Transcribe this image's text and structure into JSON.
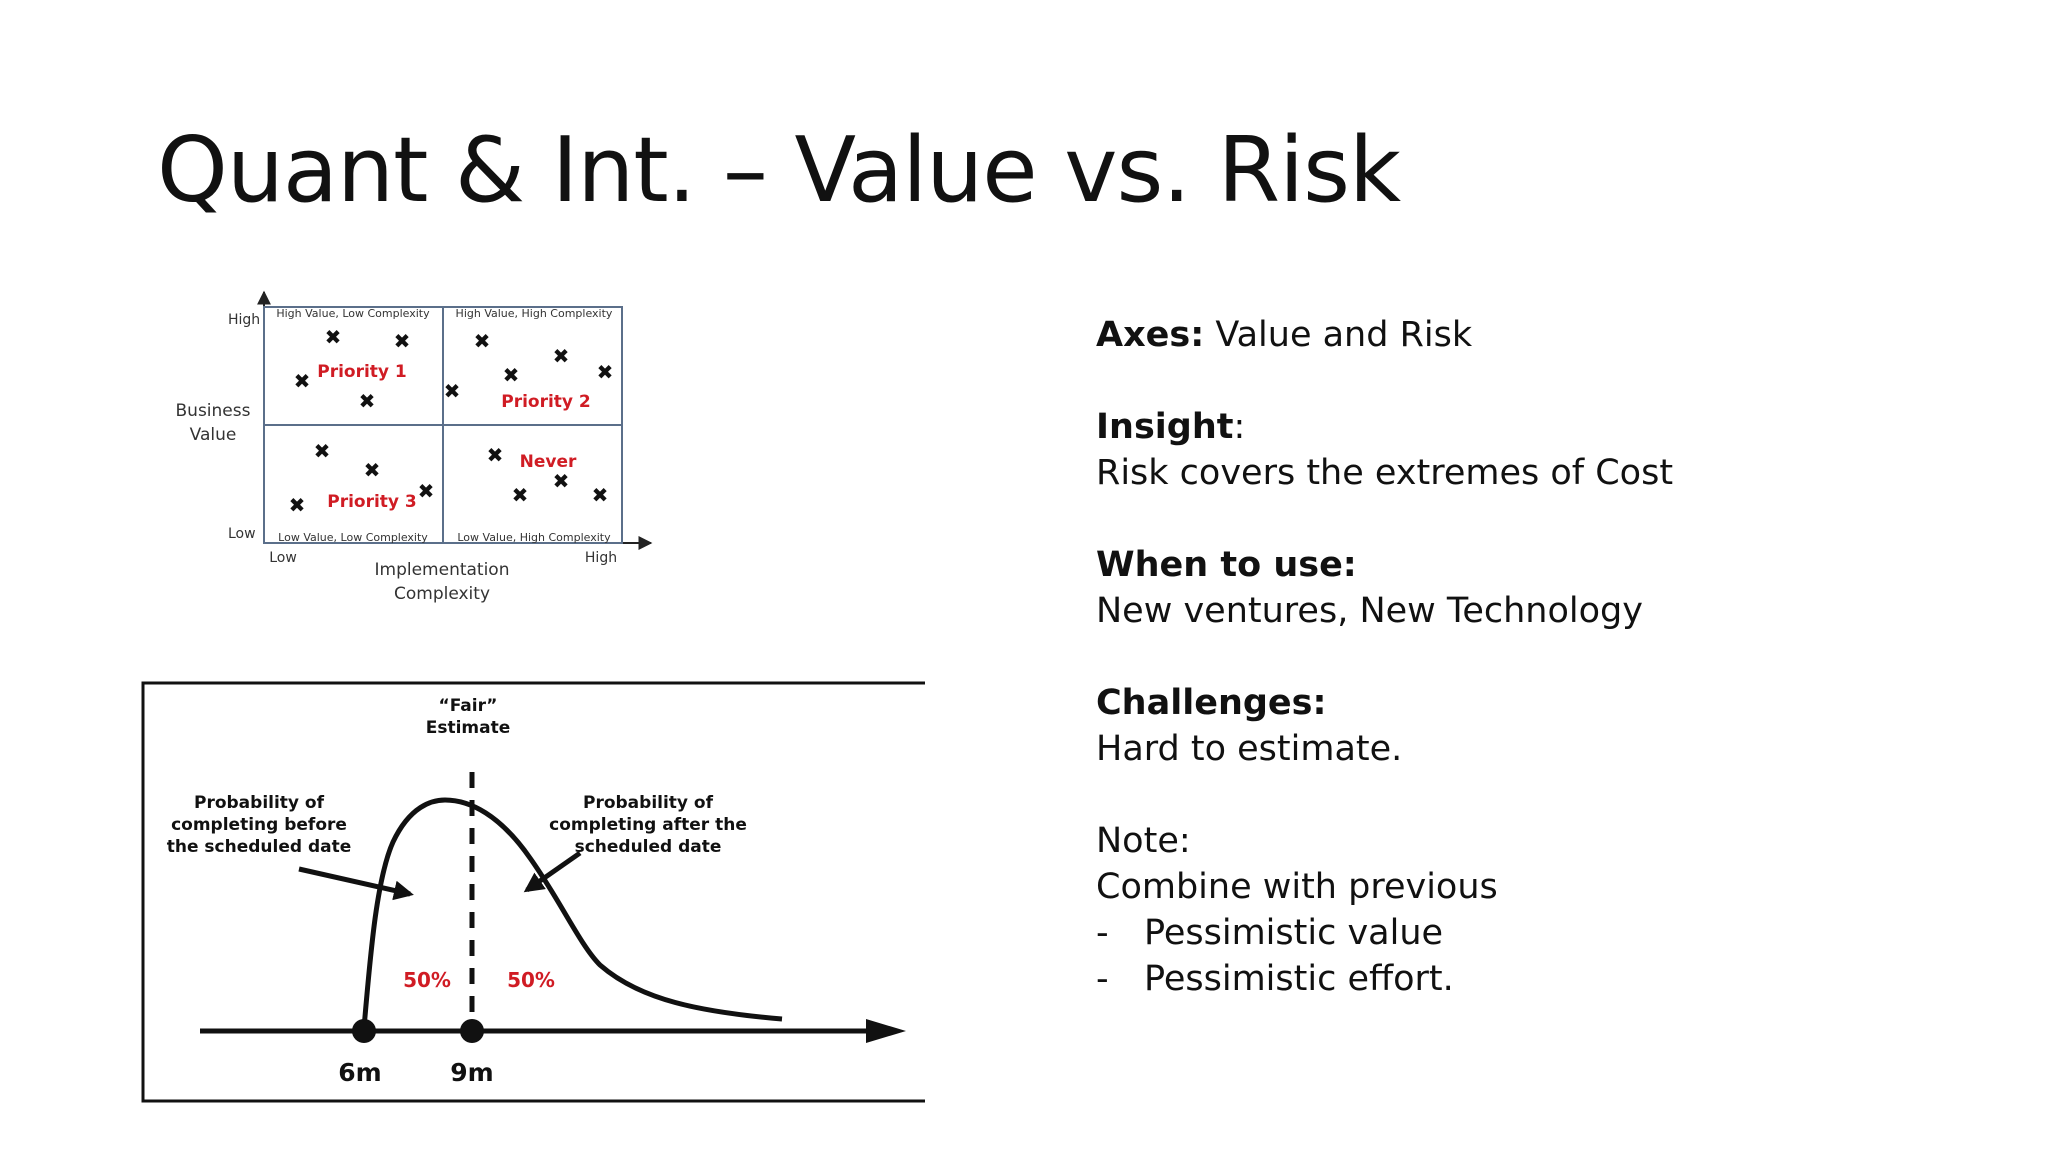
{
  "slide": {
    "title": "Quant & Int. – Value vs. Risk"
  },
  "matrix": {
    "y_axis_label_line1": "Business",
    "y_axis_label_line2": "Value",
    "y_high": "High",
    "y_low": "Low",
    "x_axis_label_line1": "Implementation",
    "x_axis_label_line2": "Complexity",
    "x_low": "Low",
    "x_high": "High",
    "quadrants": {
      "top_left": {
        "caption": "High Value, Low Complexity",
        "label": "Priority 1"
      },
      "top_right": {
        "caption": "High Value, High Complexity",
        "label": "Priority 2"
      },
      "bottom_left": {
        "caption": "Low Value, Low Complexity",
        "label": "Priority 3"
      },
      "bottom_right": {
        "caption": "Low Value, High Complexity",
        "label": "Never"
      }
    },
    "label_color": "#d01c24"
  },
  "estimate_diagram": {
    "fair_line1": "“Fair”",
    "fair_line2": "Estimate",
    "left_note_line1": "Probability of",
    "left_note_line2": "completing before",
    "left_note_line3": "the scheduled date",
    "right_note_line1": "Probability of",
    "right_note_line2": "completing after the",
    "right_note_line3": "scheduled date",
    "left_pct": "50%",
    "right_pct": "50%",
    "tick_1": "6m",
    "tick_2": "9m",
    "pct_color": "#d01c24"
  },
  "notes": {
    "axes_label": "Axes:",
    "axes_value": " Value and Risk",
    "insight_label": "Insight",
    "insight_colon": ":",
    "insight_text": "Risk covers the extremes of Cost",
    "when_label": "When to use:",
    "when_text": "New ventures, New Technology",
    "challenges_label": "Challenges:",
    "challenges_text": "Hard to estimate.",
    "note_label": "Note:",
    "note_text": "Combine with previous",
    "bullets": [
      {
        "dash": "-",
        "text": "Pessimistic value"
      },
      {
        "dash": "-",
        "text": "Pessimistic effort."
      }
    ]
  }
}
